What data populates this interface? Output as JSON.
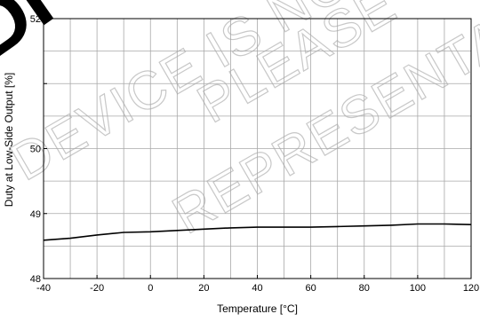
{
  "chart_data": {
    "type": "line",
    "xlabel": "Temperature [°C]",
    "ylabel": "Duty at Low-Side Output [%]",
    "xlim": [
      -40,
      120
    ],
    "ylim": [
      48,
      52
    ],
    "grid": true,
    "x_ticks": [
      -40,
      -20,
      0,
      20,
      40,
      60,
      80,
      100,
      120
    ],
    "y_ticks": [
      48,
      49,
      50,
      51,
      52
    ],
    "y_tick_labels": [
      "48",
      "49",
      "50",
      "",
      "52"
    ],
    "series": [
      {
        "x": [
          -40,
          -30,
          -20,
          -10,
          0,
          10,
          20,
          30,
          40,
          50,
          60,
          70,
          80,
          90,
          100,
          110,
          120
        ],
        "values": [
          48.59,
          48.62,
          48.67,
          48.71,
          48.72,
          48.74,
          48.76,
          48.78,
          48.79,
          48.79,
          48.79,
          48.8,
          48.81,
          48.82,
          48.84,
          48.84,
          48.83
        ]
      }
    ],
    "line_color": "#000000",
    "grid_color": "#a8a8a8"
  },
  "watermark": {
    "line1": "DEVICE IS NOT",
    "line2": "PLEASE",
    "line3": "REPRESENTATIVE",
    "big": "DI"
  }
}
